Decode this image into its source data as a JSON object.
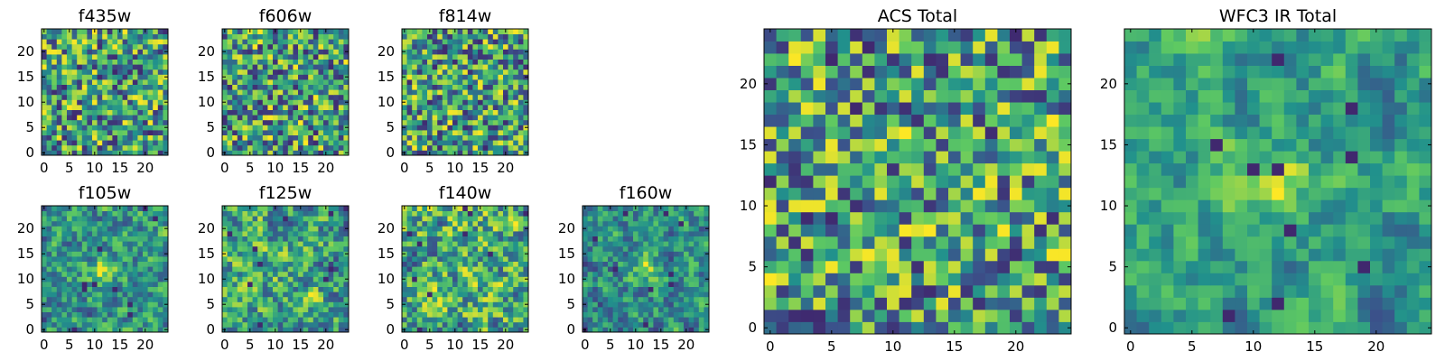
{
  "chart_data": [
    {
      "type": "heatmap",
      "title": "f435w",
      "xticks": [
        0,
        5,
        10,
        15,
        20
      ],
      "yticks": [
        0,
        5,
        10,
        15,
        20
      ],
      "grid_size": 25,
      "xlim": [
        0,
        25
      ],
      "ylim": [
        0,
        25
      ],
      "colormap": "viridis",
      "seed": 11,
      "smoothness": 0,
      "blob": null
    },
    {
      "type": "heatmap",
      "title": "f606w",
      "xticks": [
        0,
        5,
        10,
        15,
        20
      ],
      "yticks": [
        0,
        5,
        10,
        15,
        20
      ],
      "grid_size": 25,
      "xlim": [
        0,
        25
      ],
      "ylim": [
        0,
        25
      ],
      "colormap": "viridis",
      "seed": 23,
      "smoothness": 0,
      "blob": null
    },
    {
      "type": "heatmap",
      "title": "f814w",
      "xticks": [
        0,
        5,
        10,
        15,
        20
      ],
      "yticks": [
        0,
        5,
        10,
        15,
        20
      ],
      "grid_size": 25,
      "xlim": [
        0,
        25
      ],
      "ylim": [
        0,
        25
      ],
      "colormap": "viridis",
      "seed": 37,
      "smoothness": 0,
      "blob": null
    },
    {
      "type": "heatmap",
      "title": "f105w",
      "xticks": [
        0,
        5,
        10,
        15,
        20
      ],
      "yticks": [
        0,
        5,
        10,
        15,
        20
      ],
      "grid_size": 25,
      "xlim": [
        0,
        25
      ],
      "ylim": [
        0,
        25
      ],
      "colormap": "viridis",
      "seed": 41,
      "smoothness": 1,
      "blob": [
        12,
        12
      ]
    },
    {
      "type": "heatmap",
      "title": "f125w",
      "xticks": [
        0,
        5,
        10,
        15,
        20
      ],
      "yticks": [
        0,
        5,
        10,
        15,
        20
      ],
      "grid_size": 25,
      "xlim": [
        0,
        25
      ],
      "ylim": [
        0,
        25
      ],
      "colormap": "viridis",
      "seed": 53,
      "smoothness": 1,
      "blob": null
    },
    {
      "type": "heatmap",
      "title": "f140w",
      "xticks": [
        0,
        5,
        10,
        15,
        20
      ],
      "yticks": [
        0,
        5,
        10,
        15,
        20
      ],
      "grid_size": 25,
      "xlim": [
        0,
        25
      ],
      "ylim": [
        0,
        25
      ],
      "colormap": "viridis",
      "seed": 67,
      "smoothness": 1,
      "blob": null
    },
    {
      "type": "heatmap",
      "title": "f160w",
      "xticks": [
        0,
        5,
        10,
        15,
        20
      ],
      "yticks": [
        0,
        5,
        10,
        15,
        20
      ],
      "grid_size": 25,
      "xlim": [
        0,
        25
      ],
      "ylim": [
        0,
        25
      ],
      "colormap": "viridis",
      "seed": 79,
      "smoothness": 1,
      "blob": [
        12,
        12
      ]
    },
    {
      "type": "heatmap",
      "title": "ACS Total",
      "xticks": [
        0,
        5,
        10,
        15,
        20
      ],
      "yticks": [
        0,
        5,
        10,
        15,
        20
      ],
      "grid_size": 25,
      "xlim": [
        0,
        25
      ],
      "ylim": [
        0,
        25
      ],
      "colormap": "viridis",
      "seed": 97,
      "smoothness": 0,
      "blob": null
    },
    {
      "type": "heatmap",
      "title": "WFC3 IR Total",
      "xticks": [
        0,
        5,
        10,
        15,
        20
      ],
      "yticks": [
        0,
        5,
        10,
        15,
        20
      ],
      "grid_size": 25,
      "xlim": [
        0,
        25
      ],
      "ylim": [
        0,
        25
      ],
      "colormap": "viridis",
      "seed": 131,
      "smoothness": 2,
      "blob": [
        12,
        12
      ]
    }
  ]
}
